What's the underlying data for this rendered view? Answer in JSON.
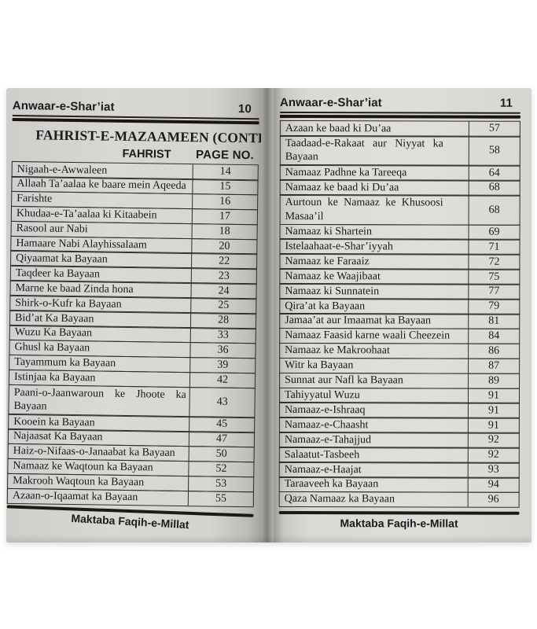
{
  "scan": {
    "running_title": "Anwaar-e-Shar’iat",
    "footer_text": "Maktaba Faqih-e-Millat",
    "left_page": {
      "page_number": "10",
      "title": "FAHRIST-E-MAZAAMEEN (CONTENTS)",
      "columns": {
        "fahrist": "FAHRIST",
        "page_no": "PAGE NO."
      },
      "rows": [
        {
          "title": "Nigaah-e-Awwaleen",
          "page": "14",
          "lines": 1
        },
        {
          "title": "Allaah Ta’aalaa ke baare mein Aqeeda",
          "page": "15",
          "lines": 1
        },
        {
          "title": "Farishte",
          "page": "16",
          "lines": 1
        },
        {
          "title": "Khudaa-e-Ta’aalaa ki Kitaabein",
          "page": "17",
          "lines": 1
        },
        {
          "title": "Rasool aur Nabi",
          "page": "18",
          "lines": 1
        },
        {
          "title": "Hamaare Nabi Alayhissalaam",
          "page": "20",
          "lines": 1
        },
        {
          "title": "Qiyaamat ka Bayaan",
          "page": "22",
          "lines": 1
        },
        {
          "title": "Taqdeer ka Bayaan",
          "page": "23",
          "lines": 1
        },
        {
          "title": "Marne ke baad Zinda hona",
          "page": "24",
          "lines": 1
        },
        {
          "title": "Shirk-o-Kufr ka Bayaan",
          "page": "25",
          "lines": 1
        },
        {
          "title": "Bid’at Ka Bayaan",
          "page": "28",
          "lines": 1
        },
        {
          "title": "Wuzu Ka Bayaan",
          "page": "33",
          "lines": 1
        },
        {
          "title": "Ghusl ka Bayaan",
          "page": "36",
          "lines": 1
        },
        {
          "title": "Tayammum ka Bayaan",
          "page": "39",
          "lines": 1
        },
        {
          "title": "Istinjaa ka Bayaan",
          "page": "42",
          "lines": 1
        },
        {
          "title": "Paani-o-Jaanwaroun ke Jhoote ka Bayaan",
          "page": "43",
          "lines": 2
        },
        {
          "title": "Kooein ka Bayaan",
          "page": "45",
          "lines": 1
        },
        {
          "title": "Najaasat Ka Bayaan",
          "page": "47",
          "lines": 1
        },
        {
          "title": "Haiz-o-Nifaas-o-Janaabat ka Bayaan",
          "page": "50",
          "lines": 1
        },
        {
          "title": "Namaaz ke Waqtoun ka Bayaan",
          "page": "52",
          "lines": 1
        },
        {
          "title": "Makrooh Waqtoun ka Bayaan",
          "page": "53",
          "lines": 1
        },
        {
          "title": "Azaan-o-Iqaamat ka Bayaan",
          "page": "55",
          "lines": 1
        }
      ]
    },
    "right_page": {
      "page_number": "11",
      "rows": [
        {
          "title": "Azaan ke baad ki Du’aa",
          "page": "57",
          "lines": 1
        },
        {
          "title": "Taadaad-e-Rakaat aur Niyyat ka Bayaan",
          "page": "58",
          "lines": 2
        },
        {
          "title": "Namaaz Padhne ka Tareeqa",
          "page": "64",
          "lines": 1
        },
        {
          "title": "Namaaz ke baad ki Du’aa",
          "page": "68",
          "lines": 1
        },
        {
          "title": "Aurtoun ke Namaaz ke Khusoosi Masaa’il",
          "page": "68",
          "lines": 2
        },
        {
          "title": "Namaaz ki Shartein",
          "page": "69",
          "lines": 1
        },
        {
          "title": "Istelaahaat-e-Shar’iyyah",
          "page": "71",
          "lines": 1
        },
        {
          "title": "Namaaz ke Faraaiz",
          "page": "72",
          "lines": 1
        },
        {
          "title": "Namaaz ke Waajibaat",
          "page": "75",
          "lines": 1
        },
        {
          "title": "Namaaz ki Sunnatein",
          "page": "77",
          "lines": 1
        },
        {
          "title": "Qira’at ka Bayaan",
          "page": "79",
          "lines": 1
        },
        {
          "title": "Jamaa’at aur Imaamat ka Bayaan",
          "page": "81",
          "lines": 1
        },
        {
          "title": "Namaaz Faasid karne waali Cheezein",
          "page": "84",
          "lines": 1
        },
        {
          "title": "Namaaz ke Makroohaat",
          "page": "86",
          "lines": 1
        },
        {
          "title": "Witr ka Bayaan",
          "page": "87",
          "lines": 1
        },
        {
          "title": "Sunnat aur Nafl ka Bayaan",
          "page": "89",
          "lines": 1
        },
        {
          "title": "Tahiyyatul Wuzu",
          "page": "91",
          "lines": 1
        },
        {
          "title": "Namaaz-e-Ishraaq",
          "page": "91",
          "lines": 1
        },
        {
          "title": "Namaaz-e-Chaasht",
          "page": "91",
          "lines": 1
        },
        {
          "title": "Namaaz-e-Tahajjud",
          "page": "92",
          "lines": 1
        },
        {
          "title": "Salaatut-Tasbeeh",
          "page": "92",
          "lines": 1
        },
        {
          "title": "Namaaz-e-Haajat",
          "page": "93",
          "lines": 1
        },
        {
          "title": "Taraaveeh ka Bayaan",
          "page": "94",
          "lines": 1
        },
        {
          "title": "Qaza Namaaz ka Bayaan",
          "page": "96",
          "lines": 1
        }
      ]
    }
  }
}
